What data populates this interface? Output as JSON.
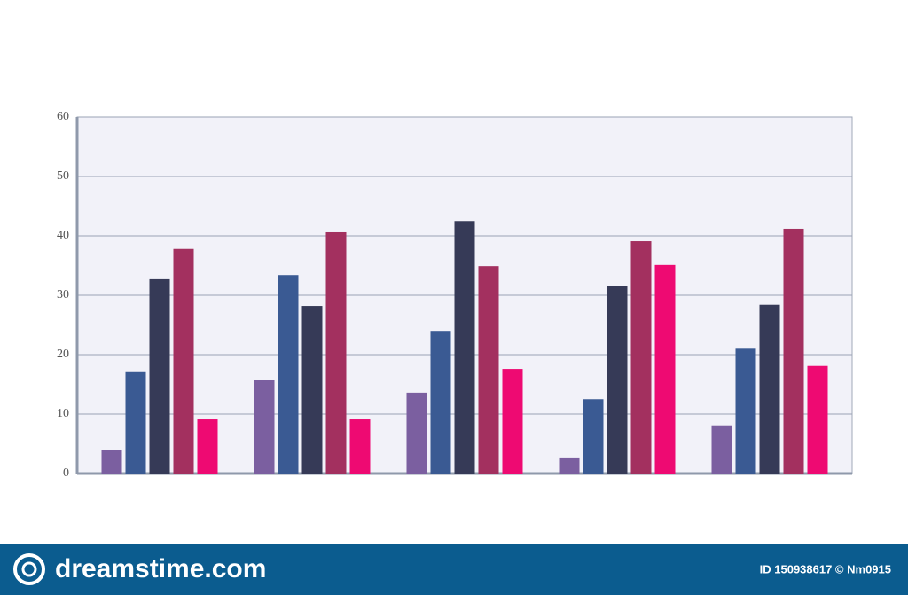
{
  "chart_data": {
    "type": "bar",
    "categories": [
      null,
      null,
      null,
      null,
      null
    ],
    "series": [
      {
        "color": "#7b5fa0",
        "values": [
          3.9,
          15.8,
          13.6,
          2.7,
          8.1
        ]
      },
      {
        "color": "#3a5a93",
        "values": [
          17.2,
          33.4,
          24,
          12.5,
          21
        ]
      },
      {
        "color": "#363a57",
        "values": [
          32.7,
          28.2,
          42.5,
          31.5,
          28.4
        ]
      },
      {
        "color": "#a3305f",
        "values": [
          37.8,
          40.6,
          34.9,
          39.1,
          41.2
        ]
      },
      {
        "color": "#ee0a72",
        "values": [
          9.1,
          9.1,
          17.6,
          35.1,
          18.1
        ]
      }
    ],
    "ylim": [
      0,
      60
    ],
    "yticks": [
      0,
      10,
      20,
      30,
      40,
      50,
      60
    ],
    "grid": true
  },
  "footer": {
    "brand": "dreamstime.com",
    "id": "ID 150938617 © Nm0915"
  }
}
